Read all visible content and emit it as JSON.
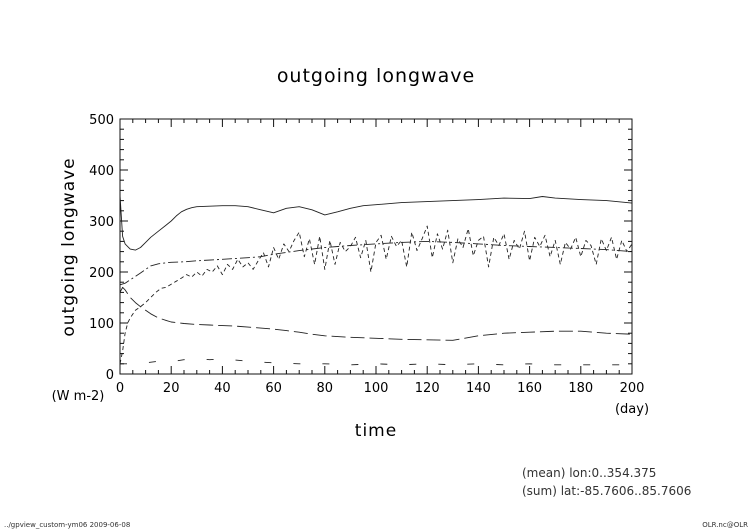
{
  "chart_data": {
    "type": "line",
    "title": "outgoing longwave",
    "xlabel": "time",
    "ylabel": "outgoing longwave",
    "x_unit": "(day)",
    "y_unit": "(W m-2)",
    "xlim": [
      0,
      200
    ],
    "ylim": [
      0,
      500
    ],
    "xticks": [
      0,
      20,
      40,
      60,
      80,
      100,
      120,
      140,
      160,
      180,
      200
    ],
    "yticks": [
      0,
      100,
      200,
      300,
      400,
      500
    ],
    "grid": false,
    "series": [
      {
        "style": "solid",
        "x": [
          0,
          1,
          2,
          4,
          6,
          8,
          10,
          12,
          15,
          18,
          20,
          22,
          24,
          26,
          28,
          30,
          35,
          40,
          45,
          50,
          55,
          60,
          65,
          70,
          75,
          80,
          85,
          90,
          95,
          100,
          110,
          120,
          130,
          140,
          150,
          160,
          165,
          170,
          180,
          190,
          200
        ],
        "values": [
          350,
          270,
          255,
          245,
          243,
          248,
          258,
          268,
          280,
          292,
          300,
          310,
          318,
          323,
          326,
          328,
          329,
          330,
          330,
          328,
          322,
          316,
          325,
          328,
          322,
          312,
          318,
          325,
          330,
          332,
          336,
          338,
          340,
          342,
          345,
          344,
          348,
          345,
          342,
          340,
          335
        ]
      },
      {
        "style": "dash-dot",
        "x": [
          0,
          2,
          5,
          8,
          10,
          12,
          15,
          18,
          20,
          25,
          30,
          40,
          50,
          55,
          60,
          70,
          80,
          90,
          100,
          110,
          120,
          130,
          140,
          150,
          160,
          170,
          180,
          190,
          200
        ],
        "values": [
          175,
          178,
          188,
          198,
          205,
          212,
          216,
          218,
          219,
          220,
          222,
          225,
          228,
          230,
          235,
          242,
          248,
          252,
          255,
          258,
          260,
          258,
          255,
          252,
          250,
          248,
          246,
          244,
          240
        ]
      },
      {
        "style": "dashed",
        "x": [
          0,
          1,
          2,
          3,
          4,
          6,
          8,
          10,
          12,
          14,
          16,
          18,
          20,
          22,
          24,
          26,
          28,
          30,
          32,
          34,
          36,
          38,
          40,
          42,
          44,
          46,
          48,
          50,
          52,
          54,
          56,
          58,
          60,
          62,
          64,
          66,
          68,
          70,
          72,
          74,
          76,
          78,
          80,
          82,
          84,
          86,
          88,
          90,
          92,
          94,
          96,
          98,
          100,
          102,
          104,
          106,
          108,
          110,
          112,
          114,
          116,
          118,
          120,
          122,
          124,
          126,
          128,
          130,
          132,
          134,
          136,
          138,
          140,
          142,
          144,
          146,
          148,
          150,
          152,
          154,
          156,
          158,
          160,
          162,
          164,
          166,
          168,
          170,
          172,
          174,
          176,
          178,
          180,
          182,
          184,
          186,
          188,
          190,
          192,
          194,
          196,
          198,
          200
        ],
        "values": [
          20,
          45,
          80,
          100,
          110,
          125,
          132,
          140,
          150,
          160,
          168,
          170,
          176,
          182,
          188,
          195,
          190,
          200,
          192,
          205,
          200,
          212,
          195,
          215,
          205,
          225,
          210,
          218,
          205,
          222,
          238,
          210,
          248,
          225,
          255,
          240,
          262,
          278,
          230,
          265,
          215,
          270,
          205,
          262,
          215,
          258,
          240,
          250,
          268,
          228,
          262,
          200,
          258,
          272,
          225,
          270,
          250,
          262,
          210,
          278,
          242,
          265,
          290,
          228,
          275,
          245,
          282,
          218,
          265,
          248,
          285,
          232,
          262,
          270,
          210,
          268,
          252,
          275,
          225,
          262,
          245,
          280,
          222,
          268,
          250,
          272,
          230,
          262,
          215,
          258,
          245,
          268,
          230,
          262,
          252,
          215,
          265,
          242,
          268,
          225,
          262,
          240,
          255
        ]
      },
      {
        "style": "long-dash",
        "x": [
          0,
          1,
          2,
          4,
          6,
          8,
          10,
          12,
          15,
          18,
          20,
          25,
          30,
          35,
          40,
          45,
          50,
          55,
          60,
          65,
          70,
          75,
          80,
          90,
          100,
          110,
          120,
          130,
          140,
          150,
          160,
          170,
          180,
          190,
          200
        ],
        "values": [
          160,
          170,
          165,
          150,
          140,
          132,
          125,
          118,
          110,
          105,
          102,
          99,
          97,
          96,
          95,
          94,
          92,
          90,
          88,
          85,
          82,
          78,
          75,
          72,
          70,
          68,
          67,
          66,
          75,
          80,
          82,
          84,
          84,
          80,
          78
        ]
      },
      {
        "style": "sparse-dash",
        "x": [
          0,
          5,
          10,
          15,
          20,
          25,
          30,
          35,
          40,
          50,
          60,
          70,
          80,
          90,
          100,
          110,
          120,
          130,
          140,
          150,
          160,
          170,
          180,
          190,
          200
        ],
        "values": [
          20,
          20,
          22,
          25,
          24,
          28,
          30,
          28,
          30,
          25,
          22,
          20,
          20,
          18,
          20,
          18,
          20,
          18,
          20,
          18,
          20,
          18,
          18,
          18,
          18
        ]
      }
    ]
  },
  "info": {
    "mean_line": "(mean) lon:0..354.375",
    "sum_line": "(sum) lat:-85.7606..85.7606"
  },
  "footer": {
    "left": "../gpview_custom-ym06  2009-06-08",
    "right": "OLR.nc@OLR"
  }
}
